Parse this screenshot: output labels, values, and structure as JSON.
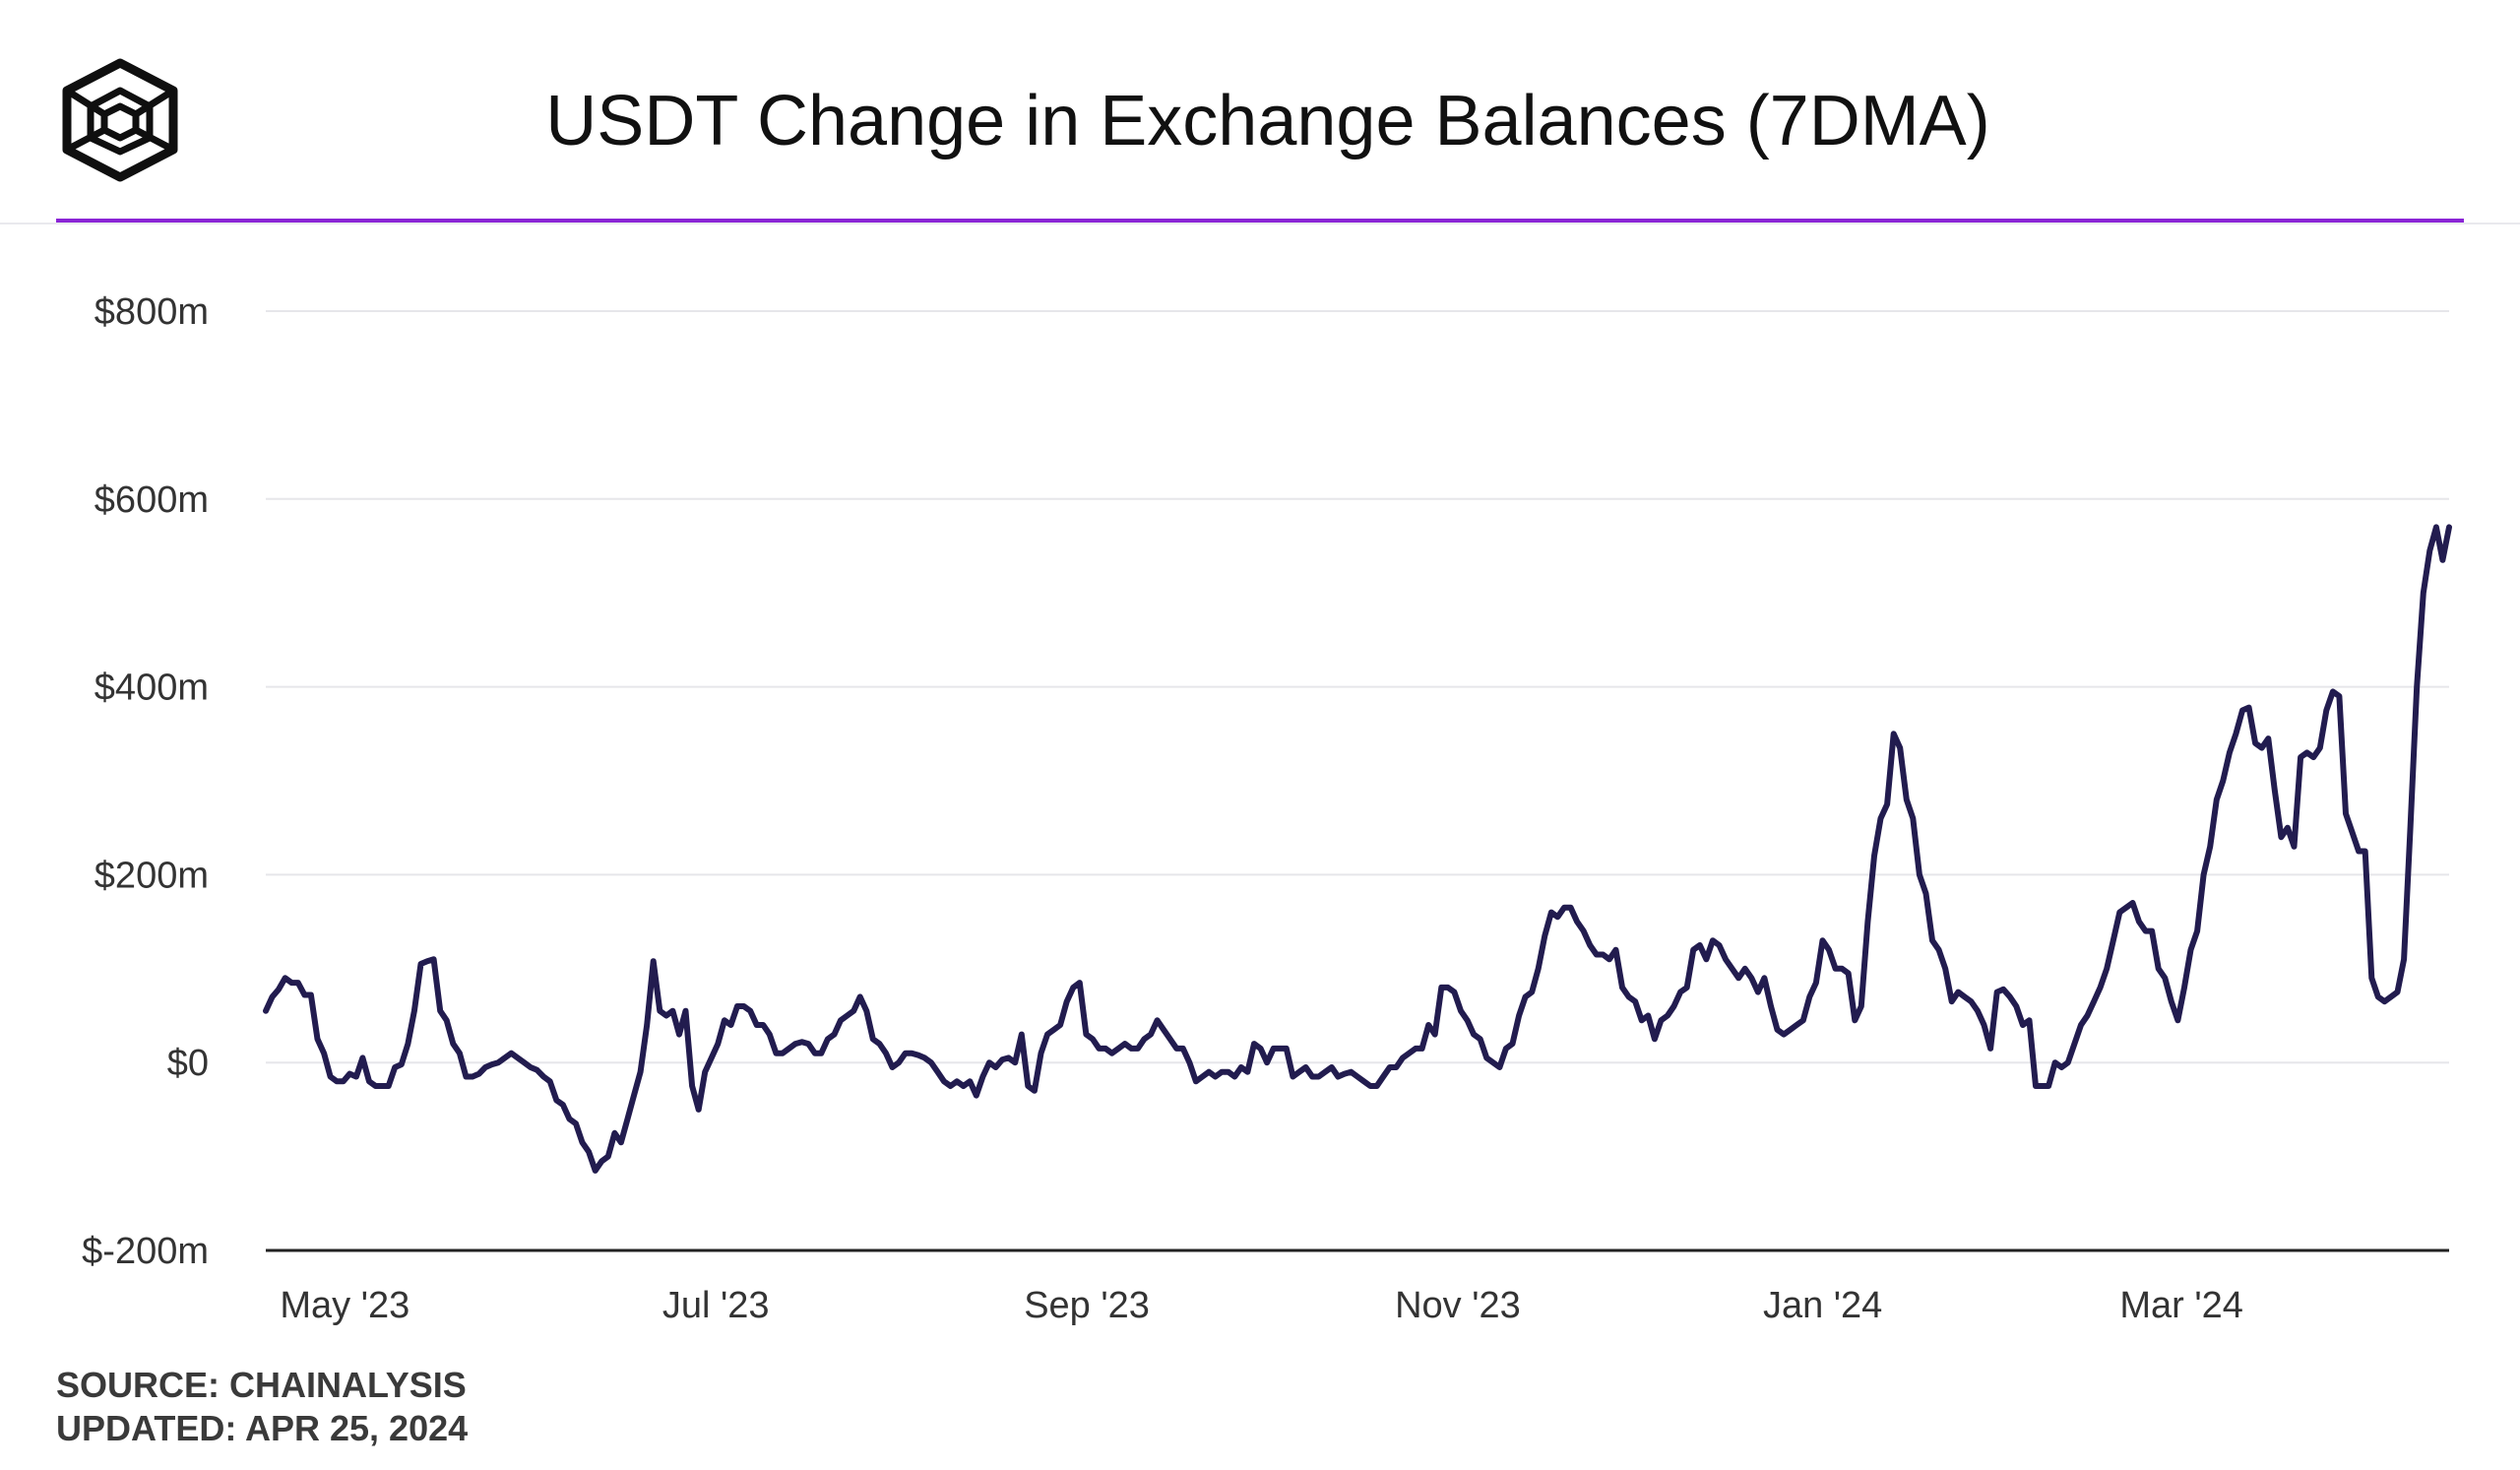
{
  "title": "USDT Change in Exchange Balances (7DMA)",
  "logo_icon": "chainalysis-cube-logo-icon",
  "colors": {
    "accent": "#8a24d6",
    "series": "#221c4f",
    "grid": "#e6e6ea",
    "axis": "#222222"
  },
  "footer": {
    "source": "SOURCE: CHAINALYSIS",
    "updated": "UPDATED: APR 25, 2024"
  },
  "chart_data": {
    "type": "line",
    "title": "USDT Change in Exchange Balances (7DMA)",
    "xlabel": "",
    "ylabel": "",
    "ylim": [
      -200,
      800
    ],
    "yticks": [
      -200,
      0,
      200,
      400,
      600,
      800
    ],
    "ytick_labels": [
      "$-200m",
      "$0",
      "$200m",
      "$400m",
      "$600m",
      "$800m"
    ],
    "xticks": [
      13,
      74,
      135,
      196,
      256,
      315
    ],
    "xtick_labels": [
      "May '23",
      "Jul '23",
      "Sep '23",
      "Nov '23",
      "Jan '24",
      "Mar '24"
    ],
    "xlim": [
      0,
      359
    ],
    "grid": true,
    "series": [
      {
        "name": "USDT 7DMA change",
        "x_start": "2023-04-18",
        "values": [
          55,
          70,
          78,
          90,
          85,
          85,
          72,
          72,
          25,
          10,
          -15,
          -20,
          -20,
          -12,
          -15,
          5,
          -20,
          -25,
          -25,
          -25,
          -5,
          -2,
          20,
          55,
          105,
          108,
          110,
          55,
          45,
          20,
          10,
          -15,
          -15,
          -12,
          -5,
          -2,
          0,
          5,
          10,
          5,
          0,
          -5,
          -8,
          -15,
          -20,
          -40,
          -45,
          -60,
          -65,
          -85,
          -95,
          -115,
          -105,
          -100,
          -75,
          -85,
          -60,
          -35,
          -10,
          40,
          108,
          55,
          50,
          55,
          30,
          55,
          -25,
          -50,
          -10,
          5,
          20,
          45,
          40,
          60,
          60,
          55,
          40,
          40,
          30,
          10,
          10,
          15,
          20,
          22,
          20,
          10,
          10,
          25,
          30,
          45,
          50,
          55,
          70,
          55,
          25,
          20,
          10,
          -5,
          0,
          10,
          10,
          8,
          5,
          0,
          -10,
          -20,
          -25,
          -20,
          -25,
          -20,
          -35,
          -15,
          0,
          -5,
          3,
          5,
          0,
          30,
          -25,
          -30,
          10,
          30,
          35,
          40,
          65,
          80,
          85,
          30,
          25,
          15,
          15,
          10,
          15,
          20,
          15,
          15,
          25,
          30,
          45,
          35,
          25,
          15,
          15,
          0,
          -20,
          -15,
          -10,
          -15,
          -10,
          -10,
          -15,
          -5,
          -10,
          20,
          15,
          0,
          15,
          15,
          15,
          -15,
          -10,
          -5,
          -15,
          -15,
          -10,
          -5,
          -15,
          -12,
          -10,
          -15,
          -20,
          -25,
          -25,
          -15,
          -5,
          -5,
          5,
          10,
          15,
          15,
          40,
          30,
          80,
          80,
          75,
          55,
          45,
          30,
          25,
          5,
          0,
          -5,
          15,
          20,
          50,
          70,
          75,
          100,
          135,
          160,
          155,
          165,
          165,
          150,
          140,
          125,
          115,
          115,
          110,
          120,
          80,
          70,
          65,
          45,
          50,
          25,
          45,
          50,
          60,
          75,
          80,
          120,
          125,
          110,
          130,
          125,
          110,
          100,
          90,
          100,
          90,
          75,
          90,
          60,
          35,
          30,
          35,
          40,
          45,
          70,
          85,
          130,
          120,
          100,
          100,
          95,
          45,
          60,
          150,
          220,
          260,
          275,
          350,
          335,
          280,
          260,
          200,
          180,
          130,
          120,
          100,
          65,
          75,
          70,
          65,
          55,
          40,
          15,
          75,
          78,
          70,
          60,
          40,
          45,
          -25,
          -25,
          -25,
          0,
          -5,
          0,
          20,
          40,
          50,
          65,
          80,
          100,
          130,
          160,
          165,
          170,
          150,
          140,
          140,
          100,
          90,
          65,
          45,
          80,
          120,
          140,
          200,
          230,
          280,
          300,
          330,
          350,
          375,
          378,
          340,
          335,
          345,
          290,
          240,
          250,
          230,
          325,
          330,
          325,
          335,
          375,
          395,
          390,
          265,
          245,
          225,
          225,
          90,
          70,
          65,
          70,
          75,
          110,
          250,
          400,
          500,
          545,
          570,
          535,
          570
        ]
      }
    ]
  }
}
